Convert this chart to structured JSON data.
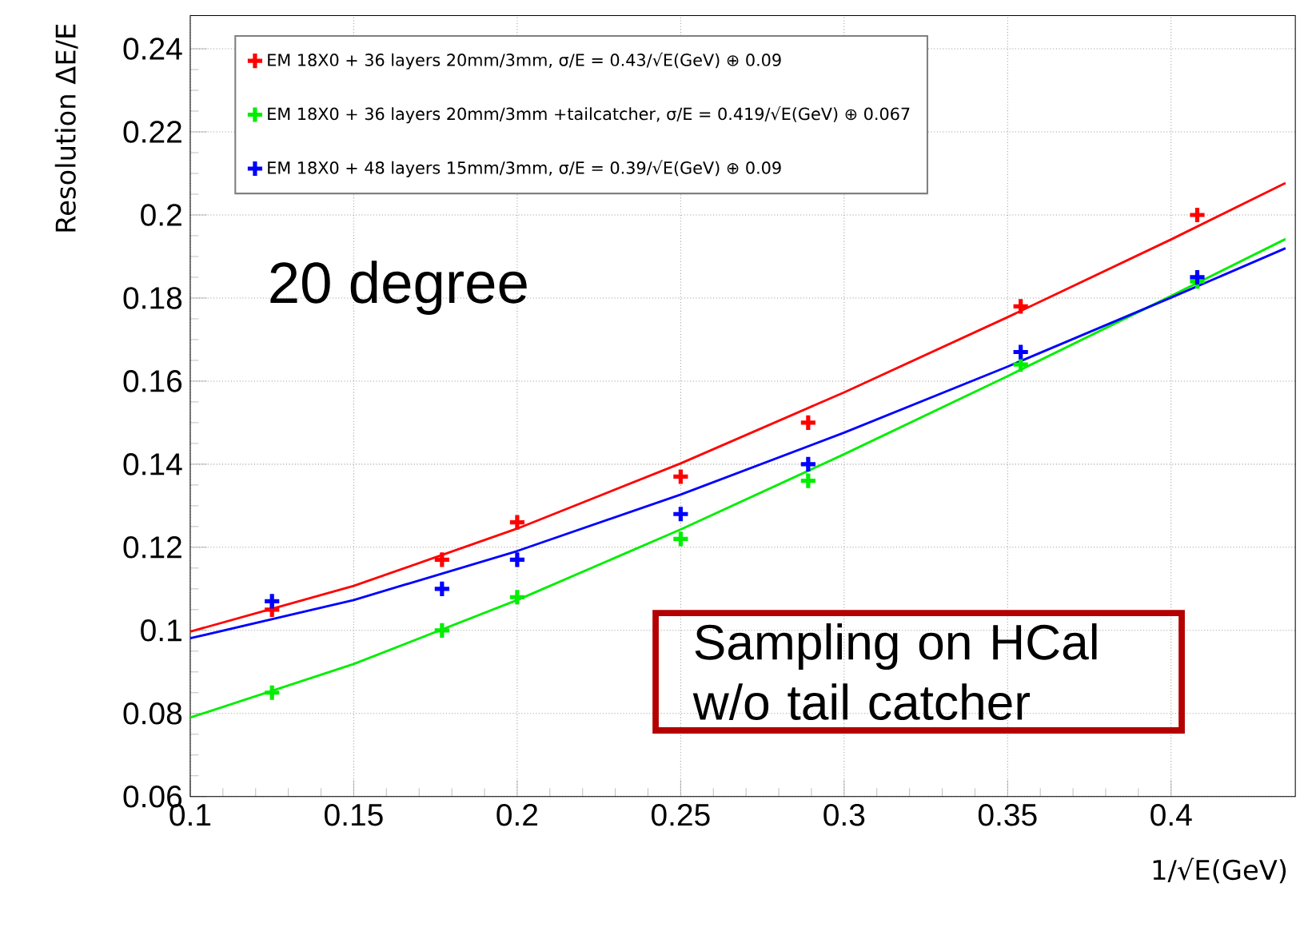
{
  "chart_data": {
    "type": "scatter",
    "xlabel": "1/√E(GeV)",
    "ylabel": "Resolution ΔE/E",
    "xlim": [
      0.1,
      0.438
    ],
    "ylim": [
      0.06,
      0.248
    ],
    "xticks": [
      0.1,
      0.15,
      0.2,
      0.25,
      0.3,
      0.35,
      0.4
    ],
    "yticks": [
      0.06,
      0.08,
      0.1,
      0.12,
      0.14,
      0.16,
      0.18,
      0.2,
      0.22,
      0.24
    ],
    "grid": true,
    "legend": "top left",
    "marker": "cross",
    "annotations": [
      "20 degree",
      "Sampling on HCal w/o tail catcher"
    ],
    "series": [
      {
        "name": "EM 18X0 + 36 layers 20mm/3mm,  σ/E = 0.43/√E(GeV) ⊕ 0.09",
        "color": "#ff0000",
        "x": [
          0.125,
          0.177,
          0.2,
          0.25,
          0.289,
          0.354,
          0.408
        ],
        "values": [
          0.105,
          0.117,
          0.126,
          0.137,
          0.15,
          0.178,
          0.2
        ]
      },
      {
        "name": "EM 18X0 + 36 layers 20mm/3mm +tailcatcher,  σ/E = 0.419/√E(GeV) ⊕ 0.067",
        "color": "#00ee00",
        "x": [
          0.125,
          0.177,
          0.2,
          0.25,
          0.289,
          0.354,
          0.408
        ],
        "values": [
          0.085,
          0.1,
          0.108,
          0.122,
          0.136,
          0.164,
          0.184
        ]
      },
      {
        "name": "EM 18X0 + 48 layers 15mm/3mm,  σ/E = 0.39/√E(GeV) ⊕ 0.09",
        "color": "#0000ff",
        "x": [
          0.125,
          0.177,
          0.2,
          0.25,
          0.289,
          0.354,
          0.408
        ],
        "values": [
          0.107,
          0.11,
          0.117,
          0.128,
          0.14,
          0.167,
          0.185
        ]
      },
      {
        "color": "#ff0000",
        "type": "line",
        "marker": "none",
        "x": [
          0.1,
          0.15,
          0.2,
          0.25,
          0.3,
          0.35,
          0.4,
          0.435
        ],
        "values": [
          0.0997,
          0.1107,
          0.1245,
          0.1402,
          0.1573,
          0.1754,
          0.1941,
          0.2077
        ]
      },
      {
        "color": "#00ee00",
        "type": "line",
        "marker": "none",
        "x": [
          0.1,
          0.15,
          0.2,
          0.25,
          0.3,
          0.35,
          0.4,
          0.435
        ],
        "values": [
          0.079,
          0.0919,
          0.1073,
          0.1243,
          0.1424,
          0.1612,
          0.1805,
          0.1942
        ]
      },
      {
        "color": "#0000ff",
        "type": "line",
        "marker": "none",
        "x": [
          0.1,
          0.15,
          0.2,
          0.25,
          0.3,
          0.35,
          0.4,
          0.435
        ],
        "values": [
          0.0981,
          0.1073,
          0.1191,
          0.1327,
          0.1476,
          0.1635,
          0.1801,
          0.192
        ]
      }
    ]
  }
}
